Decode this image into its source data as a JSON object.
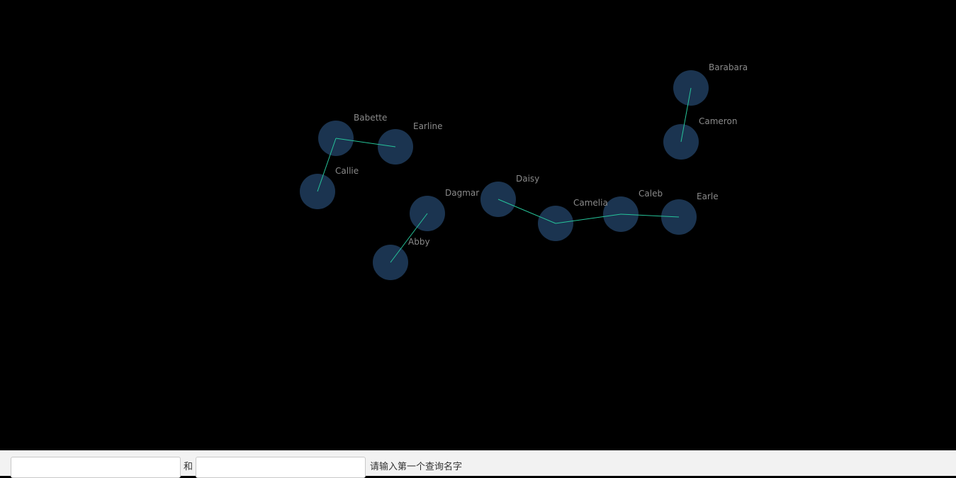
{
  "colors": {
    "background": "#000000",
    "node_fill": "#1b3450",
    "edge": "#26c49a",
    "label": "#8a8a8a",
    "query_bar": "#f2f2f2"
  },
  "graph": {
    "nodes": [
      {
        "id": "Barabara",
        "label": "Barabara"
      },
      {
        "id": "Cameron",
        "label": "Cameron"
      },
      {
        "id": "Babette",
        "label": "Babette"
      },
      {
        "id": "Earline",
        "label": "Earline"
      },
      {
        "id": "Callie",
        "label": "Callie"
      },
      {
        "id": "Dagmar",
        "label": "Dagmar"
      },
      {
        "id": "Abby",
        "label": "Abby"
      },
      {
        "id": "Daisy",
        "label": "Daisy"
      },
      {
        "id": "Camelia",
        "label": "Camelia"
      },
      {
        "id": "Caleb",
        "label": "Caleb"
      },
      {
        "id": "Earle",
        "label": "Earle"
      }
    ],
    "edges": [
      {
        "source": "Barabara",
        "target": "Cameron"
      },
      {
        "source": "Babette",
        "target": "Earline"
      },
      {
        "source": "Babette",
        "target": "Callie"
      },
      {
        "source": "Dagmar",
        "target": "Abby"
      },
      {
        "source": "Daisy",
        "target": "Camelia"
      },
      {
        "source": "Camelia",
        "target": "Caleb"
      },
      {
        "source": "Caleb",
        "target": "Earle"
      }
    ]
  },
  "query": {
    "first_name_value": "",
    "second_name_value": "",
    "and_label": "和",
    "hint": "请输入第一个查询名字"
  }
}
